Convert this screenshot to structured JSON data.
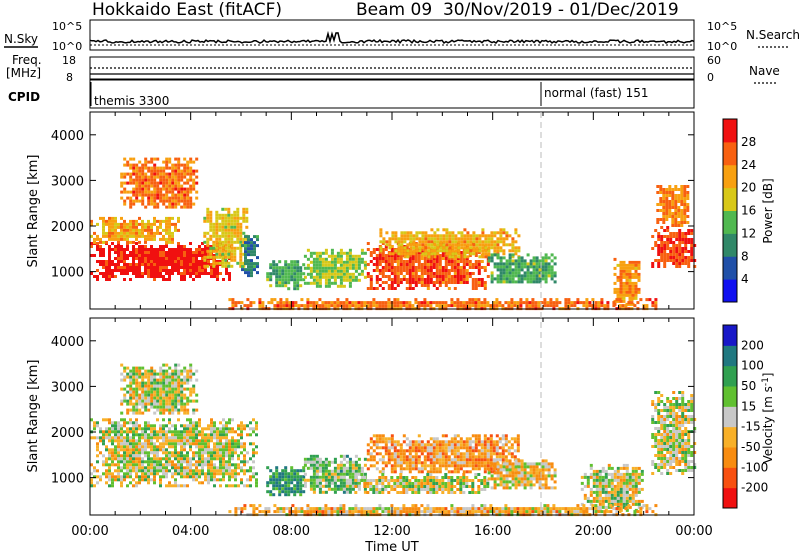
{
  "header": {
    "title": "Hokkaido East (fitACF)",
    "beam_info": "Beam 09  30/Nov/2019 - 01/Dec/2019"
  },
  "top_panels": {
    "nsky_label": "N.Sky",
    "nsky_ticks": [
      "10^5",
      "10^0"
    ],
    "nsearch_label": "N.Search",
    "nsearch_ticks": [
      "10^5",
      "10^0"
    ],
    "freq_label": "Freq.",
    "freq_unit": "[MHz]",
    "freq_ticks": [
      "18",
      "8"
    ],
    "nave_label": "Nave",
    "nave_ticks": [
      "60",
      "0"
    ],
    "cpid_label": "CPID",
    "cpid_modes": [
      {
        "label": "themis 3300",
        "start_hour": 0
      },
      {
        "label": "normal (fast) 151",
        "start_hour": 18
      }
    ]
  },
  "chart_data": [
    {
      "type": "heatmap",
      "parameter": "Power",
      "ylabel": "Slant Range [km]",
      "ylim": [
        180,
        4500
      ],
      "yticks": [
        1000,
        2000,
        3000,
        4000
      ],
      "xlim_hours": [
        0,
        24
      ],
      "colorbar": {
        "title": "Power [dB]",
        "levels": [
          0,
          4,
          8,
          12,
          16,
          20,
          24,
          28,
          32
        ],
        "tick_labels": [
          "4",
          "8",
          "12",
          "16",
          "20",
          "24",
          "28"
        ],
        "colors": [
          "#1010f0",
          "#2050a8",
          "#308868",
          "#50b850",
          "#d8c818",
          "#f8a010",
          "#f86010",
          "#f01010"
        ]
      },
      "echo_regions": [
        {
          "t0": 0.0,
          "t1": 5.6,
          "r0": 850,
          "r1": 1650,
          "v": 30
        },
        {
          "t0": 0.0,
          "t1": 3.5,
          "r0": 1650,
          "r1": 2200,
          "v": 22
        },
        {
          "t0": 1.2,
          "t1": 4.2,
          "r0": 2400,
          "r1": 3500,
          "v": 25
        },
        {
          "t0": 4.5,
          "t1": 6.2,
          "r0": 1100,
          "r1": 2400,
          "v": 19
        },
        {
          "t0": 6.0,
          "t1": 6.6,
          "r0": 900,
          "r1": 1800,
          "v": 9
        },
        {
          "t0": 7.0,
          "t1": 8.5,
          "r0": 650,
          "r1": 1250,
          "v": 13
        },
        {
          "t0": 8.5,
          "t1": 11.0,
          "r0": 700,
          "r1": 1500,
          "v": 16
        },
        {
          "t0": 11.0,
          "t1": 15.8,
          "r0": 650,
          "r1": 1650,
          "v": 27
        },
        {
          "t0": 11.5,
          "t1": 17.0,
          "r0": 1350,
          "r1": 1950,
          "v": 21
        },
        {
          "t0": 15.8,
          "t1": 18.5,
          "r0": 750,
          "r1": 1400,
          "v": 13
        },
        {
          "t0": 20.8,
          "t1": 21.8,
          "r0": 300,
          "r1": 1300,
          "v": 23
        },
        {
          "t0": 22.3,
          "t1": 24.0,
          "r0": 1100,
          "r1": 2000,
          "v": 28
        },
        {
          "t0": 22.5,
          "t1": 23.8,
          "r0": 2000,
          "r1": 2900,
          "v": 24
        },
        {
          "t0": 5.5,
          "t1": 22.5,
          "r0": 190,
          "r1": 420,
          "v": 25
        }
      ]
    },
    {
      "type": "heatmap",
      "parameter": "Velocity",
      "ylabel": "Slant Range [km]",
      "ylim": [
        180,
        4500
      ],
      "yticks": [
        1000,
        2000,
        3000,
        4000
      ],
      "xlim_hours": [
        0,
        24
      ],
      "xticks": [
        "00:00",
        "04:00",
        "08:00",
        "12:00",
        "16:00",
        "20:00",
        "00:00"
      ],
      "xlabel": "Time UT",
      "colorbar": {
        "title": "Velocity [m s^-1]",
        "levels": [
          -300,
          -200,
          -100,
          -50,
          -15,
          15,
          50,
          100,
          200,
          300
        ],
        "tick_labels": [
          "-200",
          "-100",
          "-50",
          "-15",
          "15",
          "50",
          "100",
          "200"
        ],
        "colors": [
          "#f01010",
          "#f85010",
          "#f88c10",
          "#f8b028",
          "#c8c8c8",
          "#60c030",
          "#30a050",
          "#207880",
          "#1818c8"
        ]
      },
      "echo_regions": [
        {
          "t0": 0.0,
          "t1": 6.6,
          "r0": 850,
          "r1": 2300,
          "v": 0
        },
        {
          "t0": 1.2,
          "t1": 4.2,
          "r0": 2400,
          "r1": 3500,
          "v": 0
        },
        {
          "t0": 7.0,
          "t1": 8.5,
          "r0": 650,
          "r1": 1250,
          "v": 90
        },
        {
          "t0": 8.5,
          "t1": 11.0,
          "r0": 700,
          "r1": 1500,
          "v": 40
        },
        {
          "t0": 11.0,
          "t1": 17.0,
          "r0": 1100,
          "r1": 1950,
          "v": -60
        },
        {
          "t0": 10.5,
          "t1": 15.8,
          "r0": 650,
          "r1": 1100,
          "v": 0
        },
        {
          "t0": 15.8,
          "t1": 18.5,
          "r0": 750,
          "r1": 1400,
          "v": -30
        },
        {
          "t0": 19.5,
          "t1": 22.0,
          "r0": 300,
          "r1": 1300,
          "v": 0
        },
        {
          "t0": 22.3,
          "t1": 24.0,
          "r0": 1100,
          "r1": 2900,
          "v": 0
        },
        {
          "t0": 5.5,
          "t1": 22.5,
          "r0": 190,
          "r1": 420,
          "v": -40
        }
      ]
    }
  ]
}
